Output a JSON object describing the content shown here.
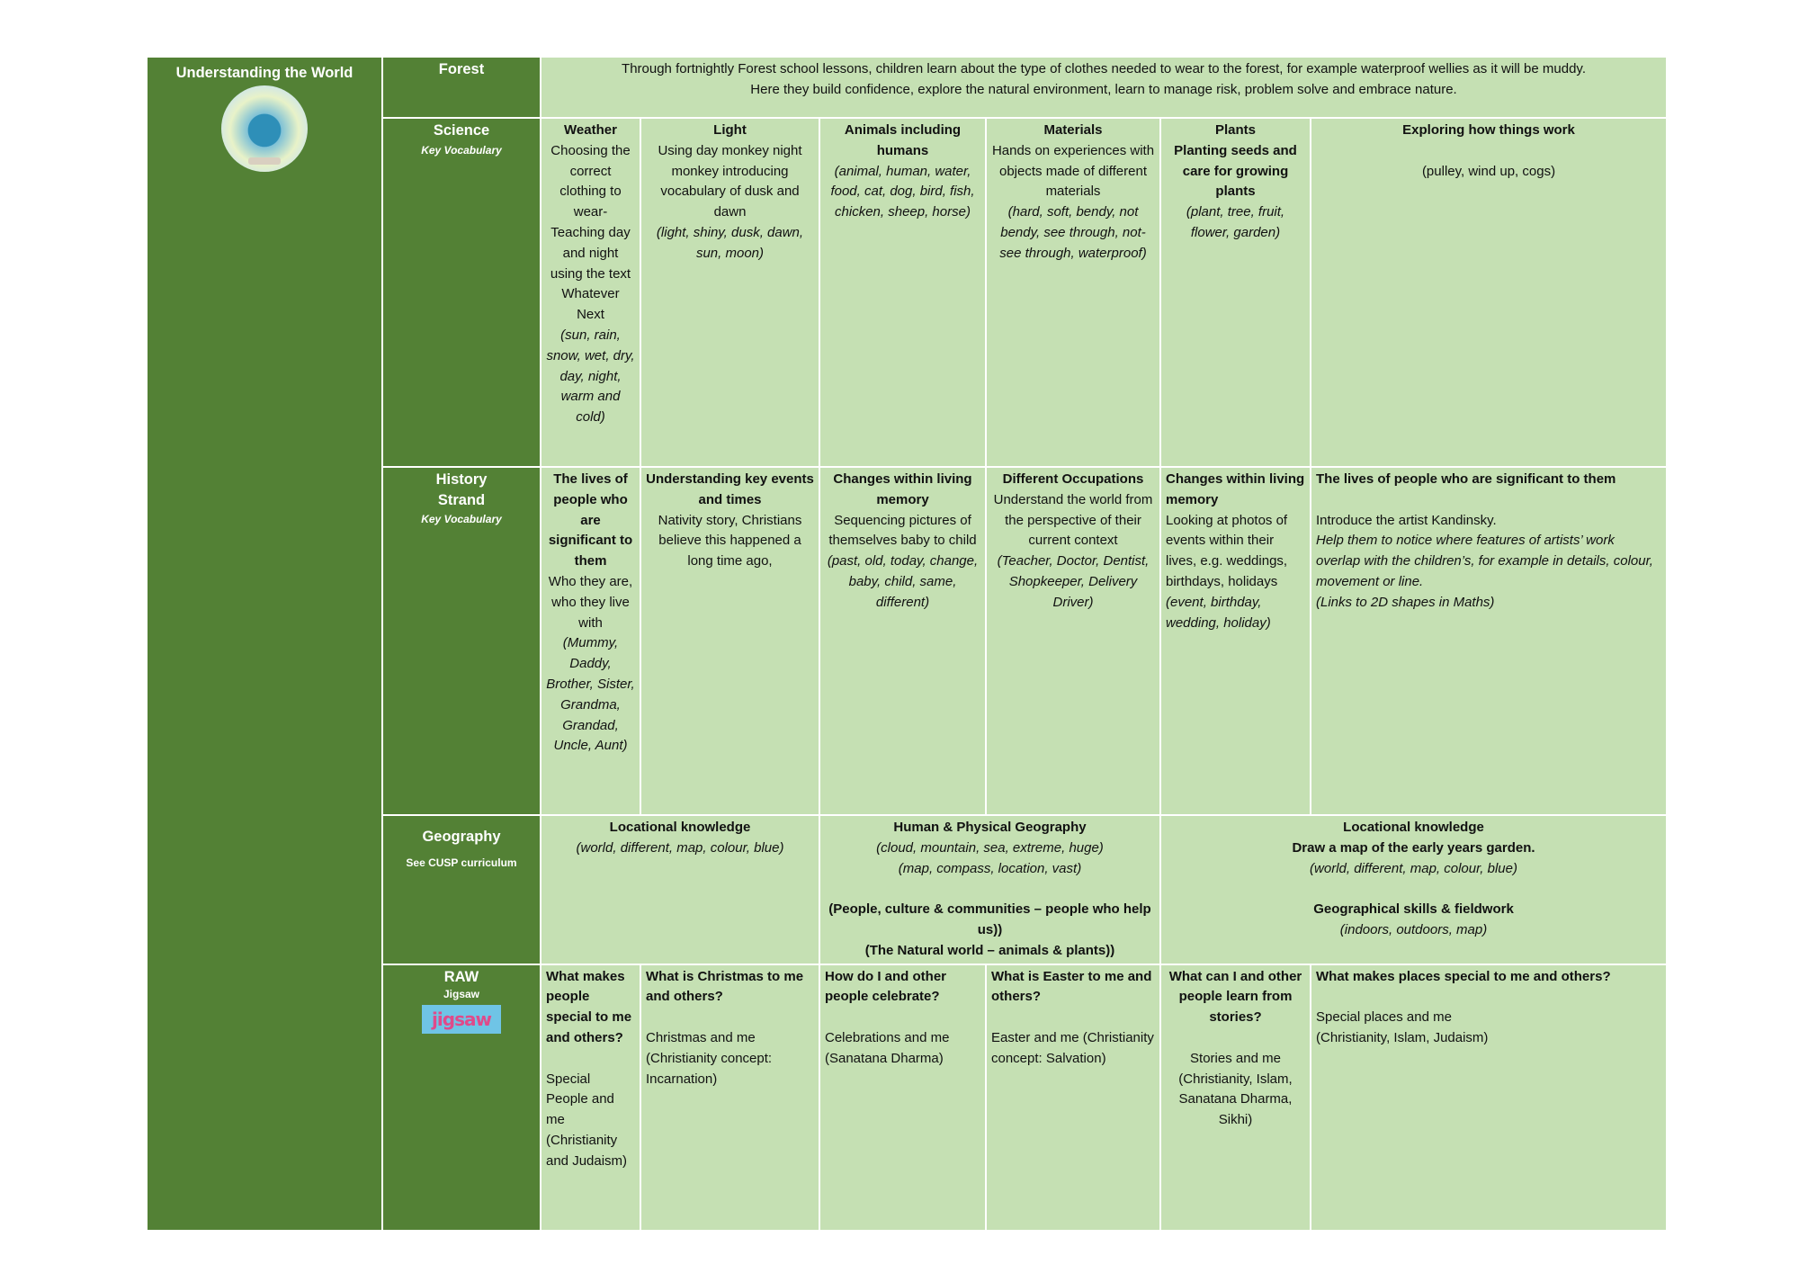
{
  "colors": {
    "dark_green": "#538135",
    "light_green": "#c5e0b3"
  },
  "sidebar": {
    "title": "Understanding the World",
    "image": "globe-on-book",
    "logo_text": "Jigsaw"
  },
  "forest": {
    "label": "Forest",
    "lines": [
      "Through fortnightly Forest school lessons, children learn about the type of clothes needed to wear to the forest, for example waterproof wellies as it will be muddy.",
      "Here they build confidence, explore the natural environment, learn to manage risk, problem solve and embrace nature."
    ]
  },
  "rows": [
    {
      "label": "Science",
      "sub": "Key Vocabulary",
      "cells": [
        {
          "center": true,
          "parts": [
            {
              "t": "Weather",
              "s": "b"
            },
            {
              "t": "Choosing the correct clothing to wear- Teaching day and night using the text Whatever Next",
              "s": "n"
            },
            {
              "t": "(sun, rain, snow, wet, dry, day, night, warm and cold)",
              "s": "i"
            }
          ]
        },
        {
          "center": true,
          "parts": [
            {
              "t": "Light",
              "s": "b"
            },
            {
              "t": "Using day monkey night monkey introducing vocabulary of dusk and dawn",
              "s": "n"
            },
            {
              "t": "(light, shiny, dusk, dawn, sun, moon)",
              "s": "i"
            }
          ]
        },
        {
          "center": true,
          "parts": [
            {
              "t": "Animals including humans",
              "s": "b"
            },
            {
              "t": "(animal, human, water, food, cat, dog, bird, fish, chicken, sheep, horse)",
              "s": "i"
            }
          ]
        },
        {
          "center": true,
          "parts": [
            {
              "t": "Materials",
              "s": "b"
            },
            {
              "t": "Hands on experiences with objects made of different materials",
              "s": "n"
            },
            {
              "t": "(hard, soft, bendy, not bendy, see through, not-see through, waterproof)",
              "s": "i"
            }
          ]
        },
        {
          "center": true,
          "parts": [
            {
              "t": "Plants",
              "s": "b"
            },
            {
              "t": "Planting seeds and care for growing plants",
              "s": "b"
            },
            {
              "t": "(plant, tree, fruit, flower, garden)",
              "s": "i"
            }
          ]
        },
        {
          "center": true,
          "parts": [
            {
              "t": "Exploring how things work",
              "s": "b"
            },
            {
              "t": "",
              "s": "br"
            },
            {
              "t": "(pulley, wind up, cogs)",
              "s": "n"
            }
          ]
        }
      ]
    },
    {
      "label": "History Strand",
      "sub": "Key Vocabulary",
      "cells": [
        {
          "center": true,
          "parts": [
            {
              "t": "The lives of people who are significant to them",
              "s": "b"
            },
            {
              "t": "Who they are, who they live with",
              "s": "n"
            },
            {
              "t": "(Mummy, Daddy, Brother, Sister, Grandma, Grandad, Uncle, Aunt)",
              "s": "i"
            }
          ]
        },
        {
          "center": true,
          "parts": [
            {
              "t": "Understanding key events and times",
              "s": "b"
            },
            {
              "t": "Nativity story, Christians believe this happened a long time ago,",
              "s": "n"
            }
          ]
        },
        {
          "center": true,
          "parts": [
            {
              "t": "Changes within living memory",
              "s": "b"
            },
            {
              "t": "Sequencing pictures of themselves baby to child",
              "s": "n"
            },
            {
              "t": "(past, old, today, change, baby, child, same, different)",
              "s": "i"
            }
          ]
        },
        {
          "center": true,
          "parts": [
            {
              "t": "Different Occupations",
              "s": "b"
            },
            {
              "t": "Understand the world from the perspective of their current context",
              "s": "n"
            },
            {
              "t": "(Teacher, Doctor, Dentist, Shopkeeper, Delivery Driver)",
              "s": "i"
            }
          ]
        },
        {
          "center": false,
          "parts": [
            {
              "t": "Changes within living memory",
              "s": "b"
            },
            {
              "t": "Looking at photos of events within their lives, e.g. weddings, birthdays, holidays",
              "s": "n"
            },
            {
              "t": "(event, birthday, wedding, holiday)",
              "s": "i"
            }
          ]
        },
        {
          "center": false,
          "parts": [
            {
              "t": "The lives of people who are significant to them",
              "s": "b"
            },
            {
              "t": "",
              "s": "br"
            },
            {
              "t": "Introduce the artist Kandinsky.",
              "s": "n"
            },
            {
              "t": "Help them to notice where features of artists’ work overlap with the children’s, for example in details, colour, movement or line.",
              "s": "i"
            },
            {
              "t": "(Links to 2D shapes in Maths)",
              "s": "i"
            }
          ]
        }
      ]
    }
  ],
  "geography": {
    "label": "Geography",
    "sub": "See CUSP curriculum",
    "cells": [
      {
        "parts": [
          {
            "t": "Locational knowledge",
            "s": "b"
          },
          {
            "t": "(world, different, map, colour, blue)",
            "s": "i"
          }
        ]
      },
      {
        "parts": [
          {
            "t": "Human & Physical Geography",
            "s": "b"
          },
          {
            "t": "(cloud, mountain, sea, extreme, huge)",
            "s": "i"
          },
          {
            "t": "(map, compass, location, vast)",
            "s": "i"
          },
          {
            "t": "",
            "s": "br"
          },
          {
            "t": "(People, culture & communities – people who help us))",
            "s": "b"
          },
          {
            "t": "(The Natural world – animals & plants))",
            "s": "b"
          }
        ]
      },
      {
        "parts": [
          {
            "t": "Locational knowledge",
            "s": "b"
          },
          {
            "t": "Draw a map of the early years garden.",
            "s": "b"
          },
          {
            "t": "(world, different, map, colour, blue)",
            "s": "i"
          },
          {
            "t": "",
            "s": "br"
          },
          {
            "t": "Geographical skills & fieldwork",
            "s": "b"
          },
          {
            "t": "(indoors, outdoors, map)",
            "s": "i"
          }
        ]
      }
    ]
  },
  "raw": {
    "label": "RAW",
    "sub": "Jigsaw",
    "cells": [
      {
        "center": false,
        "parts": [
          {
            "t": "What makes people special to me and others?",
            "s": "b"
          },
          {
            "t": "",
            "s": "br"
          },
          {
            "t": "Special People and me (Christianity and Judaism)",
            "s": "n"
          }
        ]
      },
      {
        "center": false,
        "parts": [
          {
            "t": "What is Christmas to me and others?",
            "s": "b"
          },
          {
            "t": "",
            "s": "br"
          },
          {
            "t": "Christmas and me (Christianity concept: Incarnation)",
            "s": "n"
          }
        ]
      },
      {
        "center": false,
        "parts": [
          {
            "t": "How do I and other people celebrate?",
            "s": "b"
          },
          {
            "t": "",
            "s": "br"
          },
          {
            "t": "Celebrations and me (Sanatana Dharma)",
            "s": "n"
          }
        ]
      },
      {
        "center": false,
        "parts": [
          {
            "t": "What is Easter to me and others?",
            "s": "b"
          },
          {
            "t": "",
            "s": "br"
          },
          {
            "t": "Easter and me (Christianity concept: Salvation)",
            "s": "n"
          }
        ]
      },
      {
        "center": true,
        "parts": [
          {
            "t": "What can I and other people learn from stories?",
            "s": "b"
          },
          {
            "t": "",
            "s": "br"
          },
          {
            "t": "Stories and me (Christianity, Islam, Sanatana Dharma, Sikhi)",
            "s": "n"
          }
        ]
      },
      {
        "center": false,
        "parts": [
          {
            "t": "What makes places special to me and others?",
            "s": "b"
          },
          {
            "t": "",
            "s": "br"
          },
          {
            "t": "Special places and me",
            "s": "n"
          },
          {
            "t": "(Christianity, Islam, Judaism)",
            "s": "n"
          }
        ]
      }
    ]
  }
}
